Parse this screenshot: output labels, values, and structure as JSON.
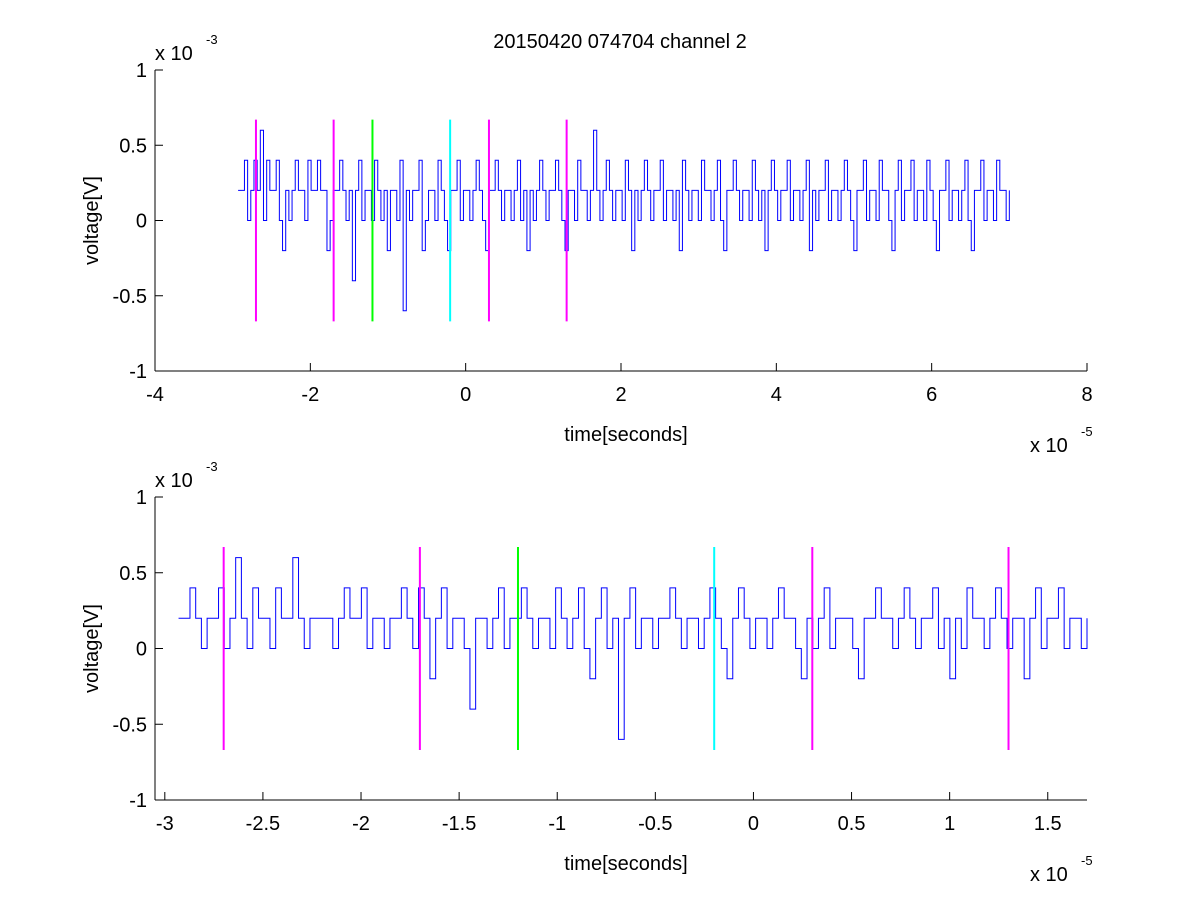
{
  "title": "20150420 074704 channel 2",
  "colors": {
    "signal": "#0000ff",
    "magenta": "#ff00ff",
    "green": "#00ff00",
    "cyan": "#00ffff",
    "axis": "#000000"
  },
  "chart_data": [
    {
      "type": "line",
      "title": "20150420 074704 channel 2",
      "xlabel": "time[seconds]",
      "ylabel": "voltage[V]",
      "x_multiplier": "x 10",
      "x_exponent": "-5",
      "y_multiplier": "x 10",
      "y_exponent": "-3",
      "xlim": [
        -4,
        8
      ],
      "ylim": [
        -1,
        1
      ],
      "xticks": [
        -4,
        -2,
        0,
        2,
        4,
        6,
        8
      ],
      "xtick_labels": [
        "-4",
        "-2",
        "0",
        "2",
        "4",
        "6",
        "8"
      ],
      "yticks": [
        -1,
        -0.5,
        0,
        0.5,
        1
      ],
      "ytick_labels": [
        "-1",
        "-0.5",
        "0",
        "0.5",
        "1"
      ],
      "grid": false,
      "series": [
        {
          "name": "",
          "color": "#0000ff",
          "x_range": [
            -2.93,
            7.0
          ],
          "values": [
            0.2,
            0.2,
            0.4,
            0.0,
            0.2,
            0.4,
            0.2,
            0.6,
            0.0,
            0.4,
            0.2,
            0.2,
            0.4,
            0.0,
            -0.2,
            0.2,
            0.0,
            0.2,
            0.4,
            0.2,
            0.2,
            0.0,
            0.4,
            0.2,
            0.2,
            0.4,
            0.2,
            0.2,
            -0.2,
            0.0,
            0.2,
            0.2,
            0.4,
            0.2,
            0.0,
            0.2,
            -0.4,
            0.2,
            0.4,
            0.0,
            0.2,
            0.2,
            0.0,
            0.4,
            0.2,
            0.0,
            0.2,
            -0.2,
            0.2,
            0.2,
            0.0,
            0.4,
            -0.6,
            0.2,
            0.0,
            0.2,
            0.2,
            0.4,
            -0.2,
            0.0,
            0.2,
            0.2,
            0.0,
            0.4,
            0.2,
            0.0,
            -0.2,
            0.2,
            0.2,
            0.4,
            0.0,
            0.2,
            0.2,
            0.0,
            0.2,
            0.4,
            0.2,
            0.0,
            -0.2,
            0.2,
            0.2,
            0.4,
            0.2,
            0.0,
            0.2,
            0.2,
            0.0,
            0.2,
            0.4,
            0.0,
            0.2,
            -0.2,
            0.2,
            0.0,
            0.2,
            0.4,
            0.2,
            0.0,
            0.2,
            0.2,
            0.4,
            0.2,
            0.0,
            -0.2,
            0.2,
            0.2,
            0.0,
            0.4,
            0.2,
            0.2,
            0.0,
            0.2,
            0.6,
            0.2,
            0.0,
            0.2,
            0.4,
            0.2,
            0.0,
            0.2,
            0.2,
            0.0,
            0.4,
            0.2,
            -0.2,
            0.2,
            0.0,
            0.2,
            0.4,
            0.2,
            0.0,
            0.2,
            0.2,
            0.4,
            0.0,
            0.2,
            0.2,
            0.0,
            0.2,
            -0.2,
            0.4,
            0.2,
            0.0,
            0.2,
            0.2,
            0.0,
            0.4,
            0.2,
            0.2,
            0.0,
            0.2,
            0.4,
            0.0,
            -0.2,
            0.2,
            0.2,
            0.4,
            0.2,
            0.0,
            0.2,
            0.2,
            0.0,
            0.4,
            0.2,
            0.0,
            0.2,
            -0.2,
            0.2,
            0.4,
            0.2,
            0.0,
            0.2,
            0.2,
            0.4,
            0.0,
            0.2,
            0.2,
            0.0,
            0.2,
            0.4,
            -0.2,
            0.2,
            0.0,
            0.2,
            0.2,
            0.4,
            0.0,
            0.2,
            0.2,
            0.0,
            0.2,
            0.4,
            0.2,
            0.0,
            -0.2,
            0.2,
            0.2,
            0.4,
            0.0,
            0.2,
            0.2,
            0.0,
            0.4,
            0.2,
            0.2,
            0.0,
            -0.2,
            0.2,
            0.4,
            0.0,
            0.2,
            0.2,
            0.4,
            0.0,
            0.2,
            0.2,
            0.0,
            0.4,
            0.2,
            0.0,
            -0.2,
            0.2,
            0.2,
            0.4,
            0.0,
            0.2,
            0.2,
            0.0,
            0.2,
            0.4,
            0.0,
            -0.2,
            0.2,
            0.2,
            0.4,
            0.0,
            0.2,
            0.2,
            0.0,
            0.4,
            0.2,
            0.2,
            0.0,
            0.2
          ]
        }
      ],
      "markers": [
        {
          "x": -2.7,
          "color": "#ff00ff",
          "ymin": -0.67,
          "ymax": 0.67
        },
        {
          "x": -1.7,
          "color": "#ff00ff",
          "ymin": -0.67,
          "ymax": 0.67
        },
        {
          "x": -1.2,
          "color": "#00ff00",
          "ymin": -0.67,
          "ymax": 0.67
        },
        {
          "x": -0.2,
          "color": "#00ffff",
          "ymin": -0.67,
          "ymax": 0.67
        },
        {
          "x": 0.3,
          "color": "#ff00ff",
          "ymin": -0.67,
          "ymax": 0.67
        },
        {
          "x": 1.3,
          "color": "#ff00ff",
          "ymin": -0.67,
          "ymax": 0.67
        }
      ]
    },
    {
      "type": "line",
      "xlabel": "time[seconds]",
      "ylabel": "voltage[V]",
      "x_multiplier": "x 10",
      "x_exponent": "-5",
      "y_multiplier": "x 10",
      "y_exponent": "-3",
      "xlim": [
        -3.05,
        1.7
      ],
      "ylim": [
        -1,
        1
      ],
      "xticks": [
        -3,
        -2.5,
        -2,
        -1.5,
        -1,
        -0.5,
        0,
        0.5,
        1,
        1.5
      ],
      "xtick_labels": [
        "-3",
        "-2.5",
        "-2",
        "-1.5",
        "-1",
        "-0.5",
        "0",
        "0.5",
        "1",
        "1.5"
      ],
      "yticks": [
        -1,
        -0.5,
        0,
        0.5,
        1
      ],
      "ytick_labels": [
        "-1",
        "-0.5",
        "0",
        "0.5",
        "1"
      ],
      "grid": false,
      "series": [
        {
          "name": "",
          "color": "#0000ff",
          "x_range": [
            -2.93,
            1.7
          ],
          "values": [
            0.2,
            0.2,
            0.4,
            0.2,
            0.0,
            0.2,
            0.2,
            0.4,
            0.0,
            0.2,
            0.6,
            0.2,
            0.0,
            0.4,
            0.2,
            0.2,
            0.0,
            0.4,
            0.2,
            0.2,
            0.6,
            0.2,
            0.0,
            0.2,
            0.2,
            0.2,
            0.2,
            0.0,
            0.2,
            0.4,
            0.2,
            0.2,
            0.4,
            0.0,
            0.2,
            0.2,
            0.0,
            0.2,
            0.2,
            0.4,
            0.2,
            0.0,
            0.4,
            0.2,
            -0.2,
            0.2,
            0.4,
            0.0,
            0.2,
            0.2,
            0.0,
            -0.4,
            0.2,
            0.2,
            0.0,
            0.2,
            0.4,
            0.0,
            0.2,
            0.2,
            0.4,
            0.2,
            0.0,
            0.2,
            0.2,
            0.0,
            0.4,
            0.2,
            0.0,
            0.2,
            0.4,
            0.0,
            -0.2,
            0.2,
            0.4,
            0.0,
            0.2,
            -0.6,
            0.2,
            0.4,
            0.0,
            0.2,
            0.2,
            0.0,
            0.2,
            0.2,
            0.4,
            0.2,
            0.0,
            0.2,
            0.2,
            0.0,
            0.2,
            0.4,
            0.2,
            0.0,
            -0.2,
            0.2,
            0.4,
            0.2,
            0.0,
            0.2,
            0.2,
            0.0,
            0.2,
            0.4,
            0.2,
            0.2,
            0.0,
            -0.2,
            0.2,
            0.0,
            0.2,
            0.4,
            0.0,
            0.2,
            0.2,
            0.2,
            0.0,
            -0.2,
            0.2,
            0.2,
            0.4,
            0.2,
            0.2,
            0.0,
            0.2,
            0.4,
            0.2,
            0.0,
            0.2,
            0.2,
            0.4,
            0.0,
            0.2,
            -0.2,
            0.2,
            0.0,
            0.4,
            0.2,
            0.2,
            0.0,
            0.2,
            0.4,
            0.2,
            0.0,
            0.2,
            0.2,
            -0.2,
            0.2,
            0.4,
            0.0,
            0.2,
            0.2,
            0.4,
            0.0,
            0.2,
            0.2,
            0.0,
            0.2
          ]
        }
      ],
      "markers": [
        {
          "x": -2.7,
          "color": "#ff00ff",
          "ymin": -0.67,
          "ymax": 0.67
        },
        {
          "x": -1.7,
          "color": "#ff00ff",
          "ymin": -0.67,
          "ymax": 0.67
        },
        {
          "x": -1.2,
          "color": "#00ff00",
          "ymin": -0.67,
          "ymax": 0.67
        },
        {
          "x": -0.2,
          "color": "#00ffff",
          "ymin": -0.67,
          "ymax": 0.67
        },
        {
          "x": 0.3,
          "color": "#ff00ff",
          "ymin": -0.67,
          "ymax": 0.67
        },
        {
          "x": 1.3,
          "color": "#ff00ff",
          "ymin": -0.67,
          "ymax": 0.67
        }
      ]
    }
  ]
}
